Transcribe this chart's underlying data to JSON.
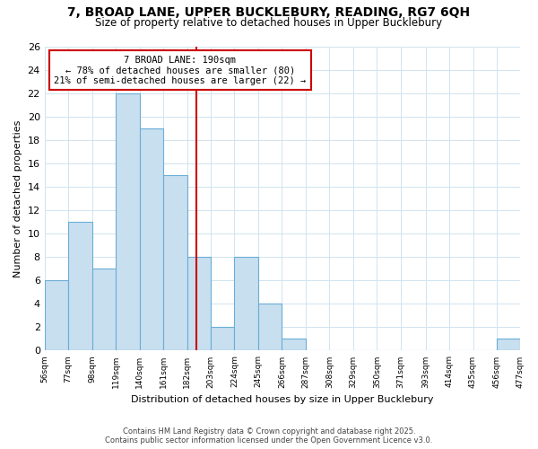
{
  "title": "7, BROAD LANE, UPPER BUCKLEBURY, READING, RG7 6QH",
  "subtitle": "Size of property relative to detached houses in Upper Bucklebury",
  "xlabel": "Distribution of detached houses by size in Upper Bucklebury",
  "ylabel": "Number of detached properties",
  "bin_edges": [
    56,
    77,
    98,
    119,
    140,
    161,
    182,
    203,
    224,
    245,
    266,
    287,
    308,
    329,
    350,
    371,
    393,
    414,
    435,
    456,
    477
  ],
  "bin_counts": [
    6,
    11,
    7,
    22,
    19,
    15,
    8,
    2,
    8,
    4,
    1,
    0,
    0,
    0,
    0,
    0,
    0,
    0,
    0,
    1
  ],
  "bar_color": "#c8dff0",
  "bar_edgecolor": "#6aaed6",
  "vline_x": 190,
  "vline_color": "#cc0000",
  "annotation_title": "7 BROAD LANE: 190sqm",
  "annotation_line1": "← 78% of detached houses are smaller (80)",
  "annotation_line2": "21% of semi-detached houses are larger (22) →",
  "annotation_box_edgecolor": "#cc0000",
  "ylim": [
    0,
    26
  ],
  "yticks": [
    0,
    2,
    4,
    6,
    8,
    10,
    12,
    14,
    16,
    18,
    20,
    22,
    24,
    26
  ],
  "tick_labels": [
    "56sqm",
    "77sqm",
    "98sqm",
    "119sqm",
    "140sqm",
    "161sqm",
    "182sqm",
    "203sqm",
    "224sqm",
    "245sqm",
    "266sqm",
    "287sqm",
    "308sqm",
    "329sqm",
    "350sqm",
    "371sqm",
    "393sqm",
    "414sqm",
    "435sqm",
    "456sqm",
    "477sqm"
  ],
  "footer_line1": "Contains HM Land Registry data © Crown copyright and database right 2025.",
  "footer_line2": "Contains public sector information licensed under the Open Government Licence v3.0.",
  "background_color": "#ffffff",
  "grid_color": "#d0e4f0"
}
